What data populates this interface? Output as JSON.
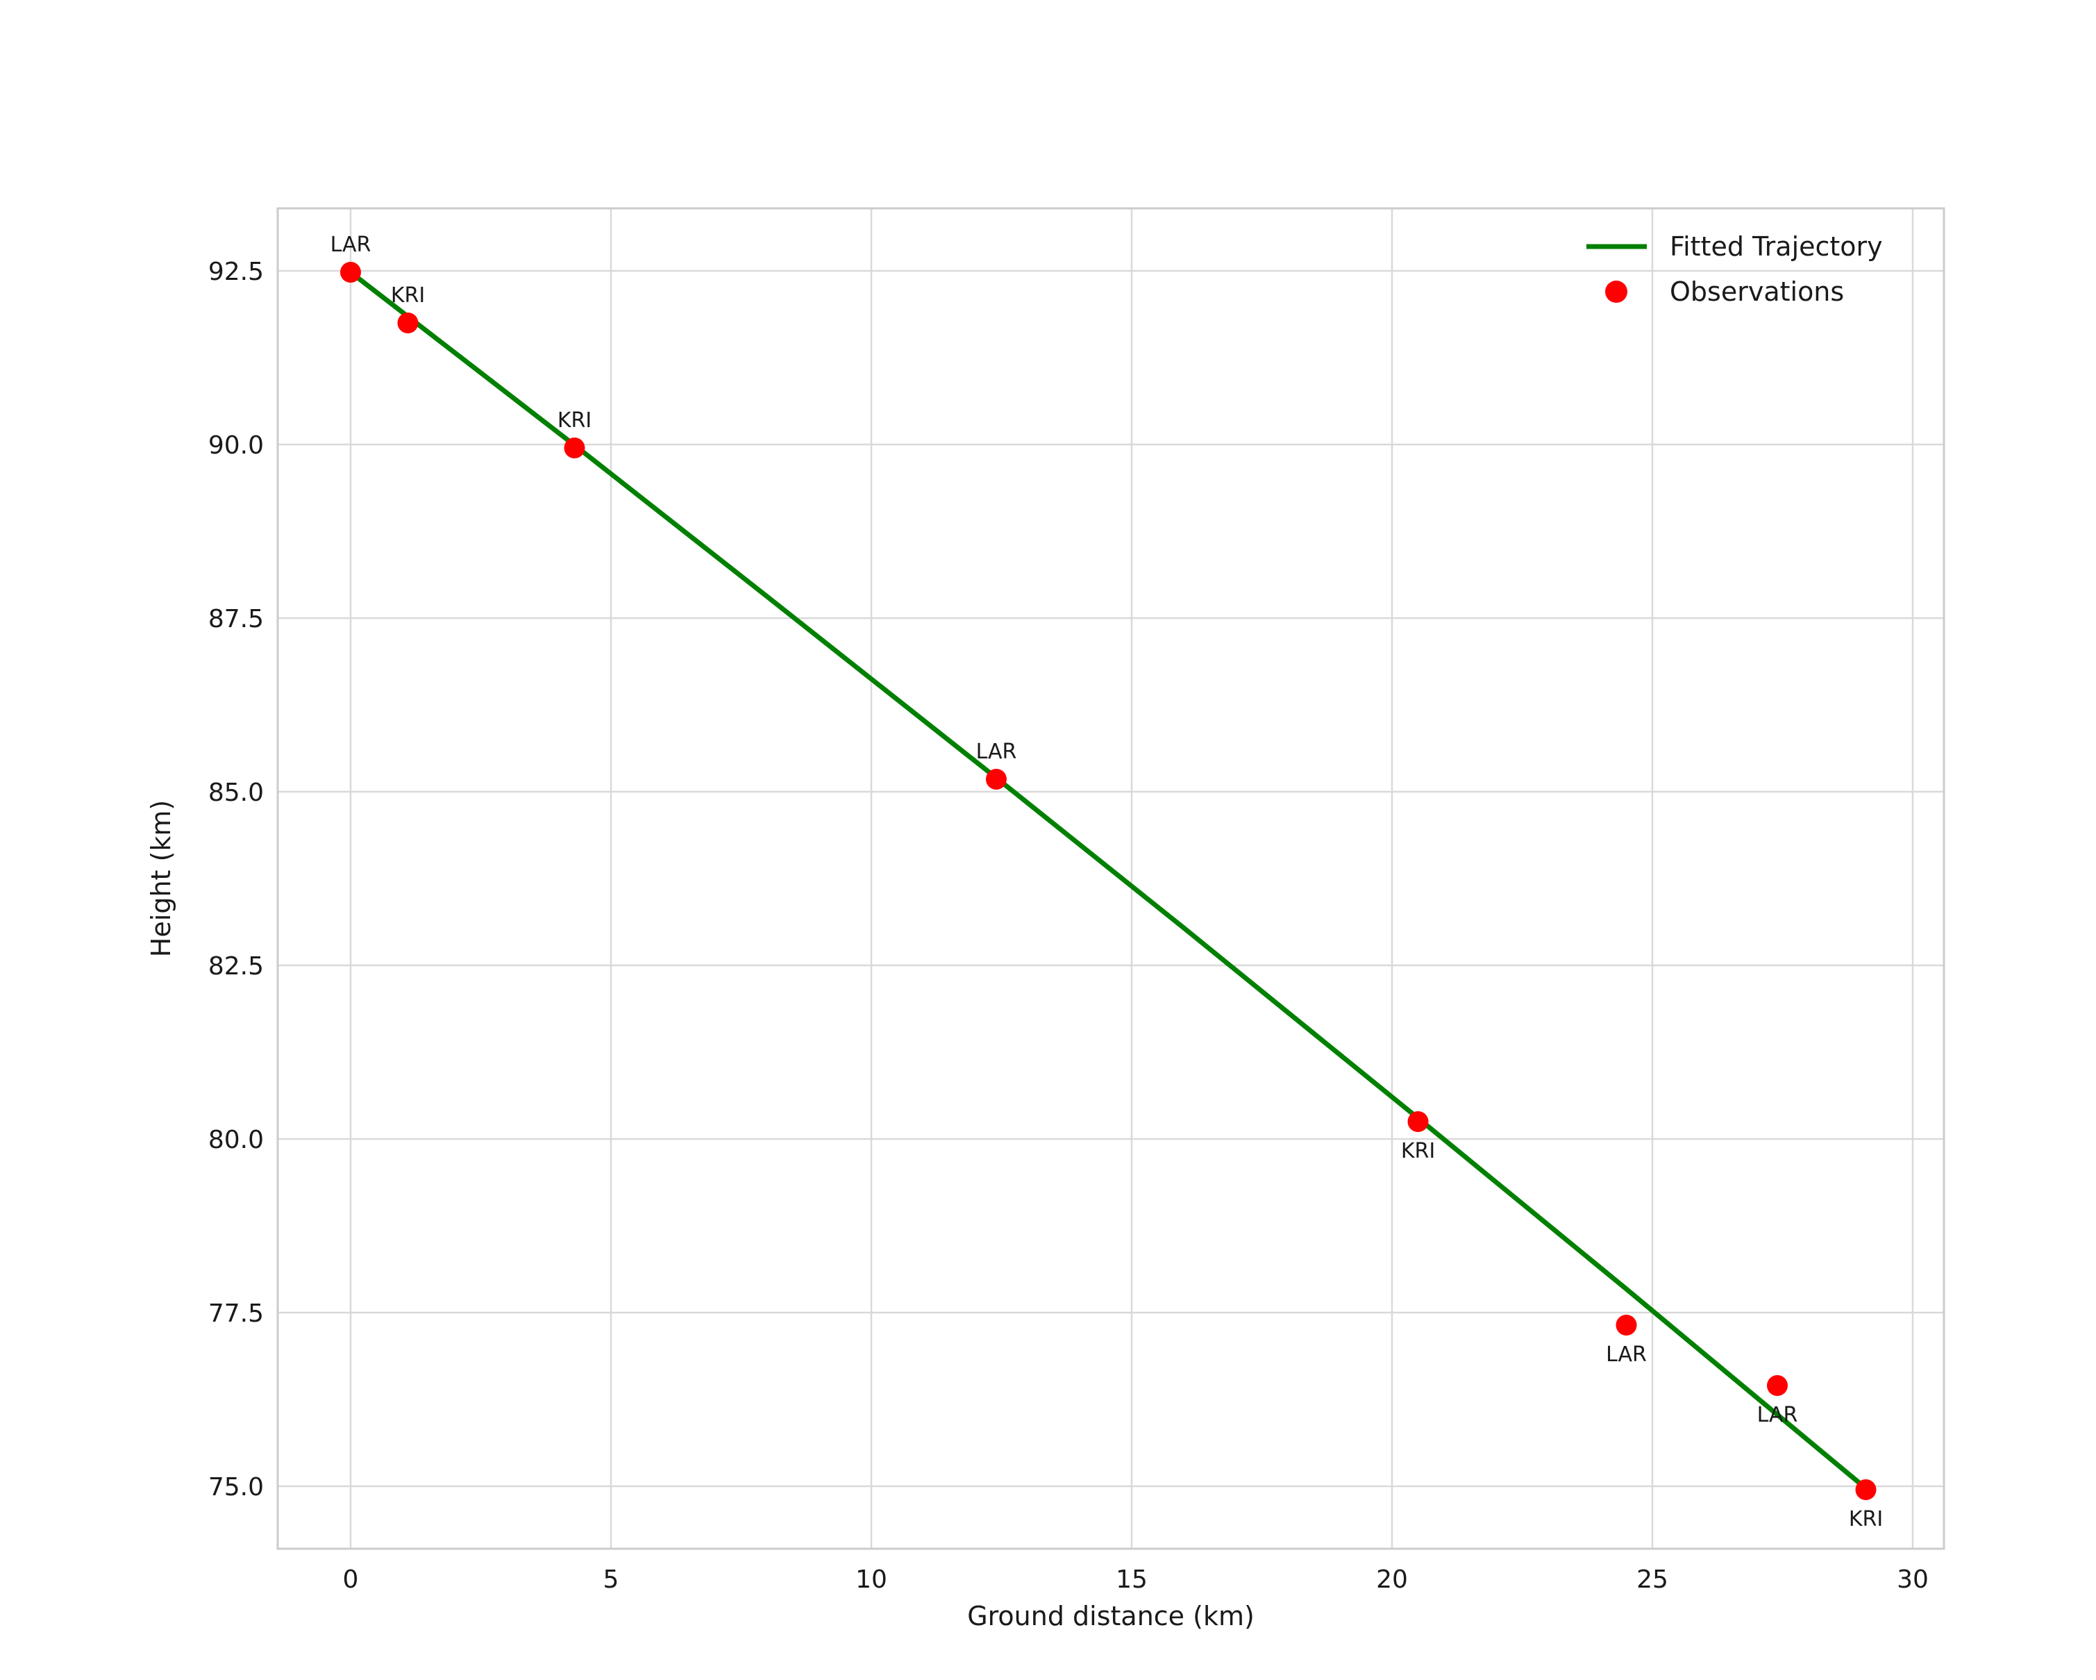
{
  "chart_data": {
    "type": "scatter",
    "title": "",
    "xlabel": "Ground distance (km)",
    "ylabel": "Height (km)",
    "xlim": [
      -1.4,
      30.6
    ],
    "ylim": [
      74.1,
      93.4
    ],
    "grid": true,
    "x_ticks": [
      {
        "value": 0,
        "label": "0"
      },
      {
        "value": 5,
        "label": "5"
      },
      {
        "value": 10,
        "label": "10"
      },
      {
        "value": 15,
        "label": "15"
      },
      {
        "value": 20,
        "label": "20"
      },
      {
        "value": 25,
        "label": "25"
      },
      {
        "value": 30,
        "label": "30"
      }
    ],
    "y_ticks": [
      {
        "value": 75.0,
        "label": "75.0"
      },
      {
        "value": 77.5,
        "label": "77.5"
      },
      {
        "value": 80.0,
        "label": "80.0"
      },
      {
        "value": 82.5,
        "label": "82.5"
      },
      {
        "value": 85.0,
        "label": "85.0"
      },
      {
        "value": 87.5,
        "label": "87.5"
      },
      {
        "value": 90.0,
        "label": "90.0"
      },
      {
        "value": 92.5,
        "label": "92.5"
      }
    ],
    "colors": {
      "fitted_line": "#008000",
      "observation_marker": "#ff0000",
      "grid": "#d9d9d9",
      "border": "#cccccc",
      "text": "#1a1a1a"
    },
    "legend": {
      "position": "upper-right",
      "entries": [
        {
          "label": "Fitted Trajectory",
          "type": "line",
          "color": "#008000"
        },
        {
          "label": "Observations",
          "type": "marker",
          "color": "#ff0000"
        }
      ]
    },
    "fitted_line": {
      "name": "Fitted Trajectory",
      "x": [
        0,
        4.3,
        8,
        12.4,
        16,
        20.5,
        24.5,
        27.4,
        29.1
      ],
      "y": [
        92.48,
        89.99,
        87.81,
        85.2,
        83.04,
        80.3,
        77.84,
        76.03,
        74.97
      ]
    },
    "observations": {
      "name": "Observations",
      "points": [
        {
          "station": "LAR",
          "x": 0.0,
          "y": 92.48,
          "label_side": "above"
        },
        {
          "station": "KRI",
          "x": 1.1,
          "y": 91.75,
          "label_side": "above"
        },
        {
          "station": "KRI",
          "x": 4.3,
          "y": 89.95,
          "label_side": "above"
        },
        {
          "station": "LAR",
          "x": 12.4,
          "y": 85.18,
          "label_side": "above"
        },
        {
          "station": "KRI",
          "x": 20.5,
          "y": 80.25,
          "label_side": "below"
        },
        {
          "station": "LAR",
          "x": 24.5,
          "y": 77.32,
          "label_side": "below"
        },
        {
          "station": "LAR",
          "x": 27.4,
          "y": 76.45,
          "label_side": "below"
        },
        {
          "station": "KRI",
          "x": 29.1,
          "y": 74.95,
          "label_side": "below"
        }
      ]
    }
  }
}
